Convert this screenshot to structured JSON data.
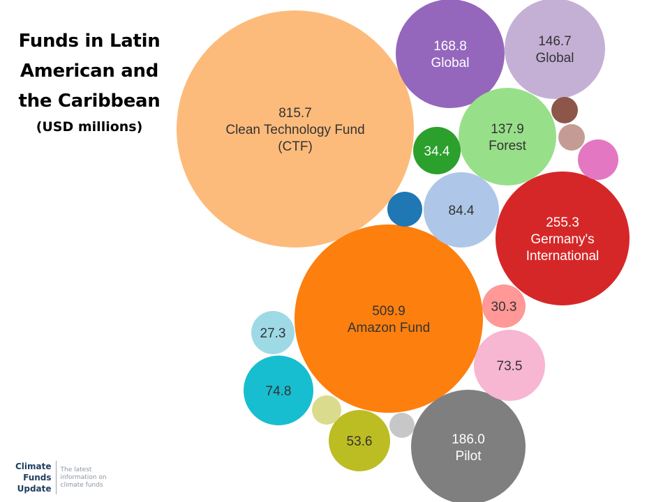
{
  "title": {
    "lines": [
      "Funds in Latin",
      "American and",
      "the Caribbean"
    ],
    "subtitle": "(USD millions)"
  },
  "chart_data": {
    "type": "bubble",
    "bubbles": [
      {
        "value": 815.7,
        "lines": [
          "815.7",
          "Clean Technology Fund",
          "(CTF)"
        ],
        "color": "#fdbb7b",
        "text_color": "#333333"
      },
      {
        "value": 509.9,
        "lines": [
          "509.9",
          "Amazon Fund"
        ],
        "color": "#fd7f0e",
        "text_color": "#333333"
      },
      {
        "value": 255.3,
        "lines": [
          "255.3",
          "Germany's",
          "International"
        ],
        "color": "#d62728",
        "text_color": "#ffffff"
      },
      {
        "value": 186.0,
        "lines": [
          "186.0",
          "Pilot"
        ],
        "color": "#7f7f7f",
        "text_color": "#ffffff"
      },
      {
        "value": 168.8,
        "lines": [
          "168.8",
          "Global"
        ],
        "color": "#9467bd",
        "text_color": "#ffffff"
      },
      {
        "value": 146.7,
        "lines": [
          "146.7",
          "Global"
        ],
        "color": "#c5b0d5",
        "text_color": "#333333"
      },
      {
        "value": 137.9,
        "lines": [
          "137.9",
          "Forest"
        ],
        "color": "#98df8a",
        "text_color": "#333333"
      },
      {
        "value": 84.4,
        "lines": [
          "84.4"
        ],
        "color": "#aec7e8",
        "text_color": "#333333"
      },
      {
        "value": 74.8,
        "lines": [
          "74.8"
        ],
        "color": "#17becf",
        "text_color": "#333333"
      },
      {
        "value": 73.5,
        "lines": [
          "73.5"
        ],
        "color": "#f7b6d2",
        "text_color": "#333333"
      },
      {
        "value": 53.6,
        "lines": [
          "53.6"
        ],
        "color": "#bcbd22",
        "text_color": "#333333"
      },
      {
        "value": 34.4,
        "lines": [
          "34.4"
        ],
        "color": "#2ca02c",
        "text_color": "#ffffff"
      },
      {
        "value": 30.3,
        "lines": [
          "30.3"
        ],
        "color": "#ff9896",
        "text_color": "#333333"
      },
      {
        "value": 27.3,
        "lines": [
          "27.3"
        ],
        "color": "#9edae5",
        "text_color": "#333333"
      },
      {
        "value": null,
        "lines": [],
        "color": "#1f77b4",
        "text_color": "#ffffff"
      },
      {
        "value": null,
        "lines": [],
        "color": "#e377c2",
        "text_color": "#ffffff"
      },
      {
        "value": null,
        "lines": [],
        "color": "#8c564b",
        "text_color": "#ffffff"
      },
      {
        "value": null,
        "lines": [],
        "color": "#c49c94",
        "text_color": "#ffffff"
      },
      {
        "value": null,
        "lines": [],
        "color": "#dbdb8d",
        "text_color": "#ffffff"
      },
      {
        "value": null,
        "lines": [],
        "color": "#c7c7c7",
        "text_color": "#ffffff"
      }
    ]
  },
  "logo": {
    "words": [
      "Climate",
      "Funds",
      "Update"
    ],
    "tagline": [
      "The latest",
      "information on",
      "climate funds"
    ]
  }
}
